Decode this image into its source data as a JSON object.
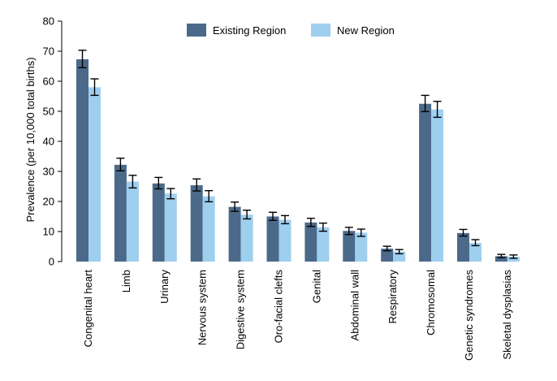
{
  "chart_data": {
    "type": "bar",
    "title": "",
    "xlabel": "",
    "ylabel": "Prevalence (per 10,000 total births)",
    "ylim": [
      0,
      80
    ],
    "yticks": [
      0,
      10,
      20,
      30,
      40,
      50,
      60,
      70,
      80
    ],
    "grid": false,
    "legend_position": "top-center",
    "categories": [
      "Congenital heart",
      "Limb",
      "Urinary",
      "Nervous system",
      "Digestive system",
      "Oro-facial clefts",
      "Genital",
      "Abdominal wall",
      "Respiratory",
      "Chromosomal",
      "Genetic syndromes",
      "Skeletal dysplasias"
    ],
    "series": [
      {
        "name": "Existing Region",
        "color": "#4b6a8a",
        "values": [
          67.3,
          32.2,
          26.0,
          25.4,
          18.2,
          15.0,
          13.0,
          10.2,
          4.3,
          52.5,
          9.5,
          1.8
        ],
        "ci_low": [
          64.5,
          30.2,
          24.2,
          23.5,
          16.7,
          13.7,
          11.7,
          9.0,
          3.6,
          49.9,
          8.5,
          1.3
        ],
        "ci_high": [
          70.3,
          34.4,
          28.0,
          27.5,
          19.8,
          16.4,
          14.4,
          11.4,
          5.1,
          55.3,
          10.7,
          2.4
        ]
      },
      {
        "name": "New Region",
        "color": "#9fcfee",
        "values": [
          58.0,
          26.6,
          22.6,
          21.7,
          15.6,
          13.9,
          11.4,
          9.6,
          3.3,
          50.6,
          6.2,
          1.6
        ],
        "ci_low": [
          55.3,
          24.5,
          20.9,
          19.9,
          14.2,
          12.6,
          10.1,
          8.4,
          2.6,
          48.0,
          5.3,
          1.1
        ],
        "ci_high": [
          60.8,
          28.7,
          24.3,
          23.6,
          17.1,
          15.3,
          12.8,
          10.8,
          4.0,
          53.3,
          7.3,
          2.2
        ]
      }
    ]
  }
}
